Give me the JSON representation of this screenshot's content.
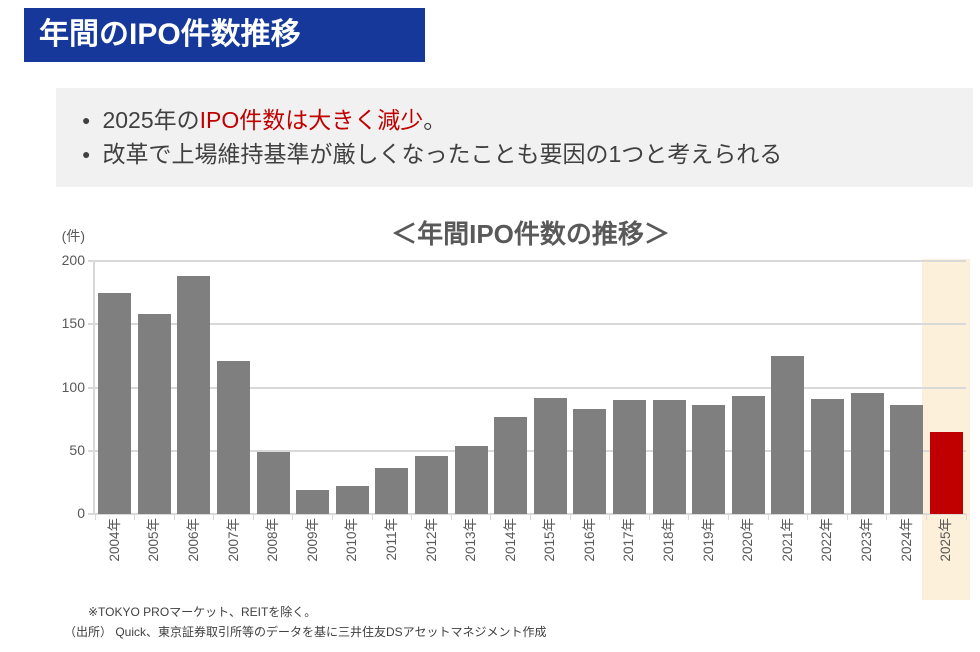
{
  "banner": {
    "title": "年間のIPO件数推移"
  },
  "summary": {
    "bullet_marker": "●",
    "bullet1_pre": "2025年の",
    "bullet1_highlight": "IPO件数は大きく減少",
    "bullet1_post": "。",
    "bullet2": "改革で上場維持基準が厳しくなったことも要因の1つと考えられる"
  },
  "chart_data": {
    "type": "bar",
    "title": "＜年間IPO件数の推移＞",
    "unit_label": "(件)",
    "categories": [
      "2004年",
      "2005年",
      "2006年",
      "2007年",
      "2008年",
      "2009年",
      "2010年",
      "2011年",
      "2012年",
      "2013年",
      "2014年",
      "2015年",
      "2016年",
      "2017年",
      "2018年",
      "2019年",
      "2020年",
      "2021年",
      "2022年",
      "2023年",
      "2024年",
      "2025年"
    ],
    "values": [
      175,
      158,
      188,
      121,
      49,
      19,
      22,
      36,
      46,
      54,
      77,
      92,
      83,
      90,
      90,
      86,
      93,
      125,
      91,
      96,
      86,
      65
    ],
    "xlabel": "",
    "ylabel": "(件)",
    "ylim": [
      0,
      200
    ],
    "yticks": [
      0,
      50,
      100,
      150,
      200
    ],
    "grid": true,
    "legend": false,
    "highlight_category": "2025年",
    "colors": {
      "bar": "#7f7f7f",
      "highlight_bar": "#c00000",
      "highlight_bg": "#fcf0da",
      "gridline": "#d9d9d9",
      "axis_text": "#595959",
      "banner_bg": "#16389b",
      "accent_red": "#c00000",
      "summary_bg": "#f1f1f1"
    }
  },
  "footnotes": {
    "line1": "※TOKYO PROマーケット、REITを除く。",
    "line2": "（出所） Quick、東京証券取引所等のデータを基に三井住友DSアセットマネジメント作成"
  }
}
